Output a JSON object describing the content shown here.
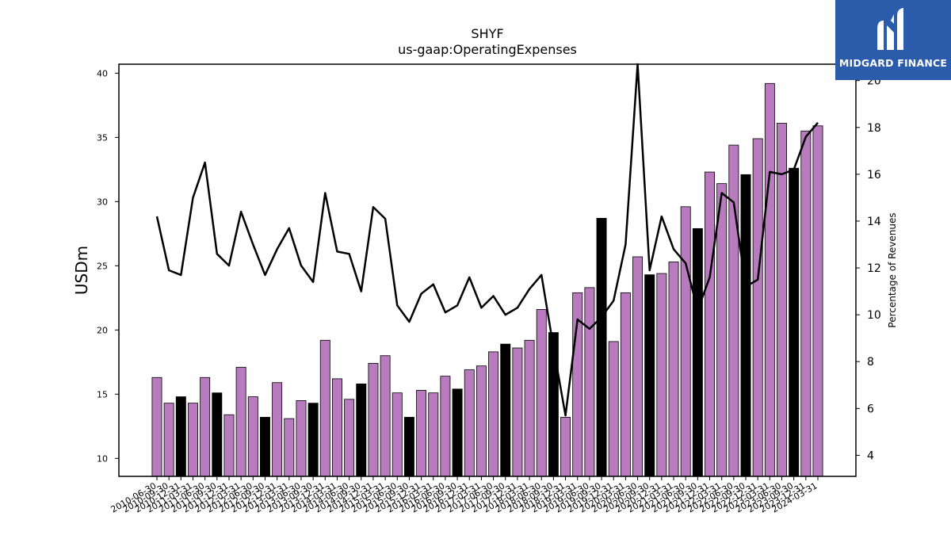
{
  "brand": {
    "name": "MIDGARD FINANCE",
    "background": "#2b5cab"
  },
  "chart_data": {
    "type": "bar",
    "title": "SHYF",
    "subtitle": "us-gaap:OperatingExpenses",
    "ylabel": "USDm",
    "y2label": "Percentage of Revenues",
    "ylim": [
      8.6,
      40.7
    ],
    "y2lim": [
      3.1,
      20.7
    ],
    "yticks": [
      10,
      15,
      20,
      25,
      30,
      35,
      40
    ],
    "y2ticks": [
      4,
      6,
      8,
      10,
      12,
      14,
      16,
      18,
      20
    ],
    "colors": {
      "bar_quarter": "#b87bbd",
      "bar_annual": "#000000",
      "line": "#000000"
    },
    "categories": [
      "2010-06-30",
      "2010-09-30",
      "2010-12-31",
      "2011-03-31",
      "2011-06-30",
      "2011-09-30",
      "2011-12-31",
      "2012-03-31",
      "2012-06-30",
      "2012-09-30",
      "2012-12-31",
      "2013-03-31",
      "2013-06-30",
      "2013-09-30",
      "2013-12-31",
      "2014-03-31",
      "2014-06-30",
      "2014-09-30",
      "2014-12-31",
      "2015-03-31",
      "2015-06-30",
      "2015-09-30",
      "2015-12-31",
      "2016-03-31",
      "2016-06-30",
      "2016-09-30",
      "2016-12-31",
      "2017-03-31",
      "2017-06-30",
      "2017-09-30",
      "2017-12-31",
      "2018-03-31",
      "2018-06-30",
      "2018-09-30",
      "2018-12-31",
      "2019-03-31",
      "2019-06-30",
      "2019-09-30",
      "2019-12-31",
      "2020-03-31",
      "2020-06-30",
      "2020-09-30",
      "2020-12-31",
      "2021-03-31",
      "2021-06-30",
      "2021-09-30",
      "2021-12-31",
      "2022-03-31",
      "2022-06-30",
      "2022-09-30",
      "2022-12-31",
      "2023-03-31",
      "2023-06-30",
      "2023-09-30",
      "2023-12-31",
      "2024-03-31"
    ],
    "series": [
      {
        "kind": "bar",
        "axis": "left",
        "values": [
          16.3,
          14.3,
          14.8,
          14.3,
          16.3,
          15.1,
          13.4,
          17.1,
          14.8,
          13.2,
          15.9,
          13.1,
          14.5,
          14.3,
          19.2,
          16.2,
          14.6,
          15.8,
          17.4,
          18.0,
          15.1,
          13.2,
          15.3,
          15.1,
          16.4,
          15.4,
          16.9,
          17.2,
          18.3,
          18.9,
          18.6,
          19.2,
          21.6,
          19.8,
          13.2,
          22.9,
          23.3,
          28.7,
          19.1,
          22.9,
          25.7,
          24.3,
          24.4,
          25.3,
          29.6,
          27.9,
          32.3,
          31.4,
          34.4,
          32.1,
          34.9,
          39.2,
          36.1,
          32.6,
          35.5,
          35.9
        ],
        "annual": [
          false,
          false,
          true,
          false,
          false,
          true,
          false,
          false,
          false,
          true,
          false,
          false,
          false,
          true,
          false,
          false,
          false,
          true,
          false,
          false,
          false,
          true,
          false,
          false,
          false,
          true,
          false,
          false,
          false,
          true,
          false,
          false,
          false,
          true,
          false,
          false,
          false,
          true,
          false,
          false,
          false,
          true,
          false,
          false,
          false,
          true,
          false,
          false,
          false,
          true,
          false,
          false,
          false,
          true,
          false,
          false
        ]
      },
      {
        "kind": "line",
        "axis": "right",
        "values": [
          14.2,
          11.9,
          11.7,
          15.0,
          16.5,
          12.6,
          12.1,
          14.4,
          13.0,
          11.7,
          12.8,
          13.7,
          12.1,
          11.4,
          15.2,
          12.7,
          12.6,
          11.0,
          14.6,
          14.1,
          10.4,
          9.7,
          10.9,
          11.3,
          10.1,
          10.4,
          11.6,
          10.3,
          10.8,
          10.0,
          10.3,
          11.1,
          11.7,
          8.6,
          5.7,
          9.8,
          9.4,
          9.9,
          10.6,
          13.0,
          20.7,
          11.9,
          14.2,
          12.8,
          12.2,
          10.2,
          11.6,
          15.2,
          14.8,
          11.2,
          11.5,
          16.1,
          16.0,
          16.2,
          17.6,
          18.2
        ]
      }
    ],
    "legend": "none",
    "grid": false
  }
}
